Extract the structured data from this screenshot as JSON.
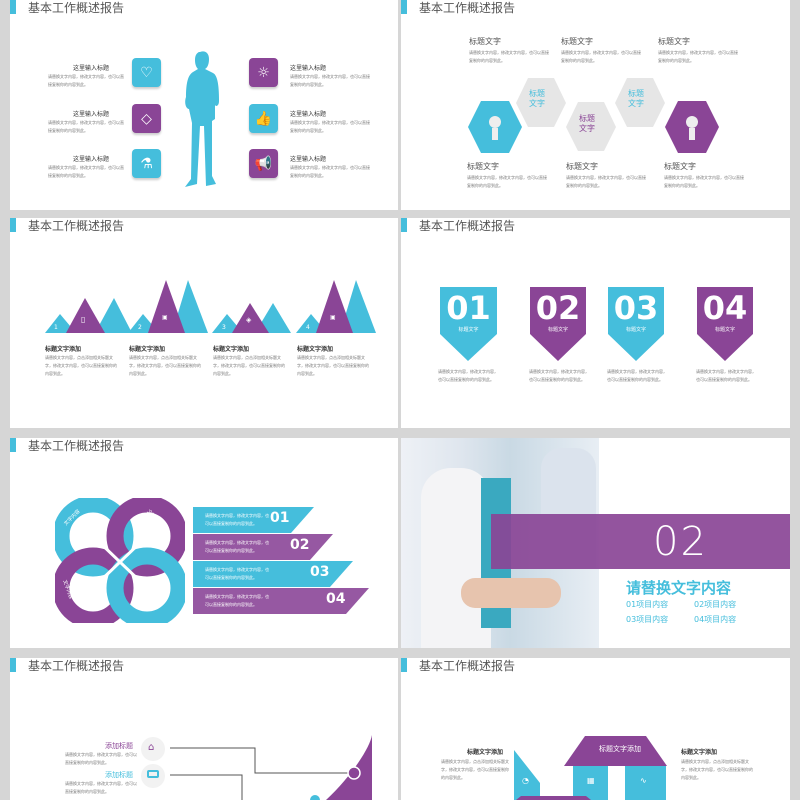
{
  "colors": {
    "cyan": "#45bedc",
    "purple": "#8a4596"
  },
  "slide_title": "基本工作概述报告",
  "filler": "请替换文字内容，修改文字内容，也可以直接复制你的内容到此。",
  "slide1": {
    "items": [
      {
        "label": "这里输入标题",
        "icon": "heart-icon"
      },
      {
        "label": "这里输入标题",
        "icon": "diamond-icon"
      },
      {
        "label": "这里输入标题",
        "icon": "flask-icon"
      },
      {
        "label": "这里输入标题",
        "icon": "lightbulb-icon"
      },
      {
        "label": "这里输入标题",
        "icon": "thumbs-up-icon"
      },
      {
        "label": "这里输入标题",
        "icon": "megaphone-icon"
      }
    ]
  },
  "slide2": {
    "heading": "标题文字",
    "hex_line1": "标题",
    "hex_line2": "文字"
  },
  "slide3": {
    "heading": "标题文字添加",
    "numbers": [
      "1",
      "2",
      "3",
      "4"
    ],
    "body": "请替换文字内容，点击添加相关标题文字，修改文字内容，也可以直接复制你的内容到此。"
  },
  "slide4": {
    "numbers": [
      "01",
      "02",
      "03",
      "04"
    ],
    "caption": "标题文字"
  },
  "slide5": {
    "petal_label": "文字内容",
    "numbers": [
      "01",
      "02",
      "03",
      "04"
    ]
  },
  "slide6": {
    "number": "02",
    "headline": "请替换文字内容",
    "items": [
      "01项目内容",
      "02项目内容",
      "03项目内容",
      "04项目内容"
    ]
  },
  "slide7": {
    "labels": [
      "添加标题",
      "添加标题"
    ]
  },
  "slide8": {
    "heading": "标题文字添加"
  }
}
